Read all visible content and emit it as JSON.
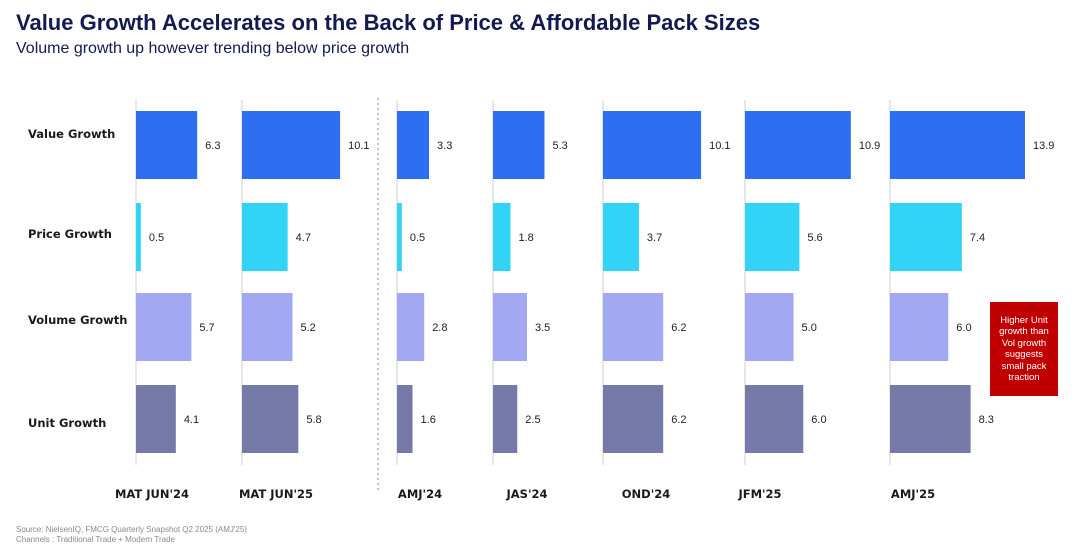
{
  "header": {
    "title": "Value Growth Accelerates on the Back of Price & Affordable Pack Sizes",
    "subtitle": "Volume growth up however trending below price growth"
  },
  "callout": {
    "text": "Higher Unit growth than Vol growth suggests small pack traction"
  },
  "footer": {
    "source": "Source: NielsenIQ, FMCG Quarterly Snapshot Q2 2025 (AMJ'25)",
    "channels": "Channels : Traditional Trade + Modern Trade"
  },
  "chart_data": {
    "type": "bar",
    "orientation": "horizontal-small-multiples",
    "title": "Value Growth Accelerates on the Back of Price & Affordable Pack Sizes",
    "subtitle": "Volume growth up however trending below price growth",
    "metrics": [
      "Value Growth",
      "Price Growth",
      "Volume Growth",
      "Unit Growth"
    ],
    "periods": [
      "MAT JUN'24",
      "MAT JUN'25",
      "AMJ'24",
      "JAS'24",
      "OND'24",
      "JFM'25",
      "AMJ'25"
    ],
    "series": [
      {
        "name": "Value Growth",
        "color": "#2e6ef0",
        "values": [
          6.3,
          10.1,
          3.3,
          5.3,
          10.1,
          10.9,
          13.9
        ]
      },
      {
        "name": "Price Growth",
        "color": "#31d4f7",
        "values": [
          0.5,
          4.7,
          0.5,
          1.8,
          3.7,
          5.6,
          7.4
        ]
      },
      {
        "name": "Volume Growth",
        "color": "#a3a8f2",
        "values": [
          5.7,
          5.2,
          2.8,
          3.5,
          6.2,
          5.0,
          6.0
        ]
      },
      {
        "name": "Unit Growth",
        "color": "#767aa8",
        "values": [
          4.1,
          5.8,
          1.6,
          2.5,
          6.2,
          6.0,
          8.3
        ]
      }
    ],
    "divider_after_period_index": 1,
    "value_label_color": "#222222",
    "grid": false,
    "legend": "none"
  }
}
